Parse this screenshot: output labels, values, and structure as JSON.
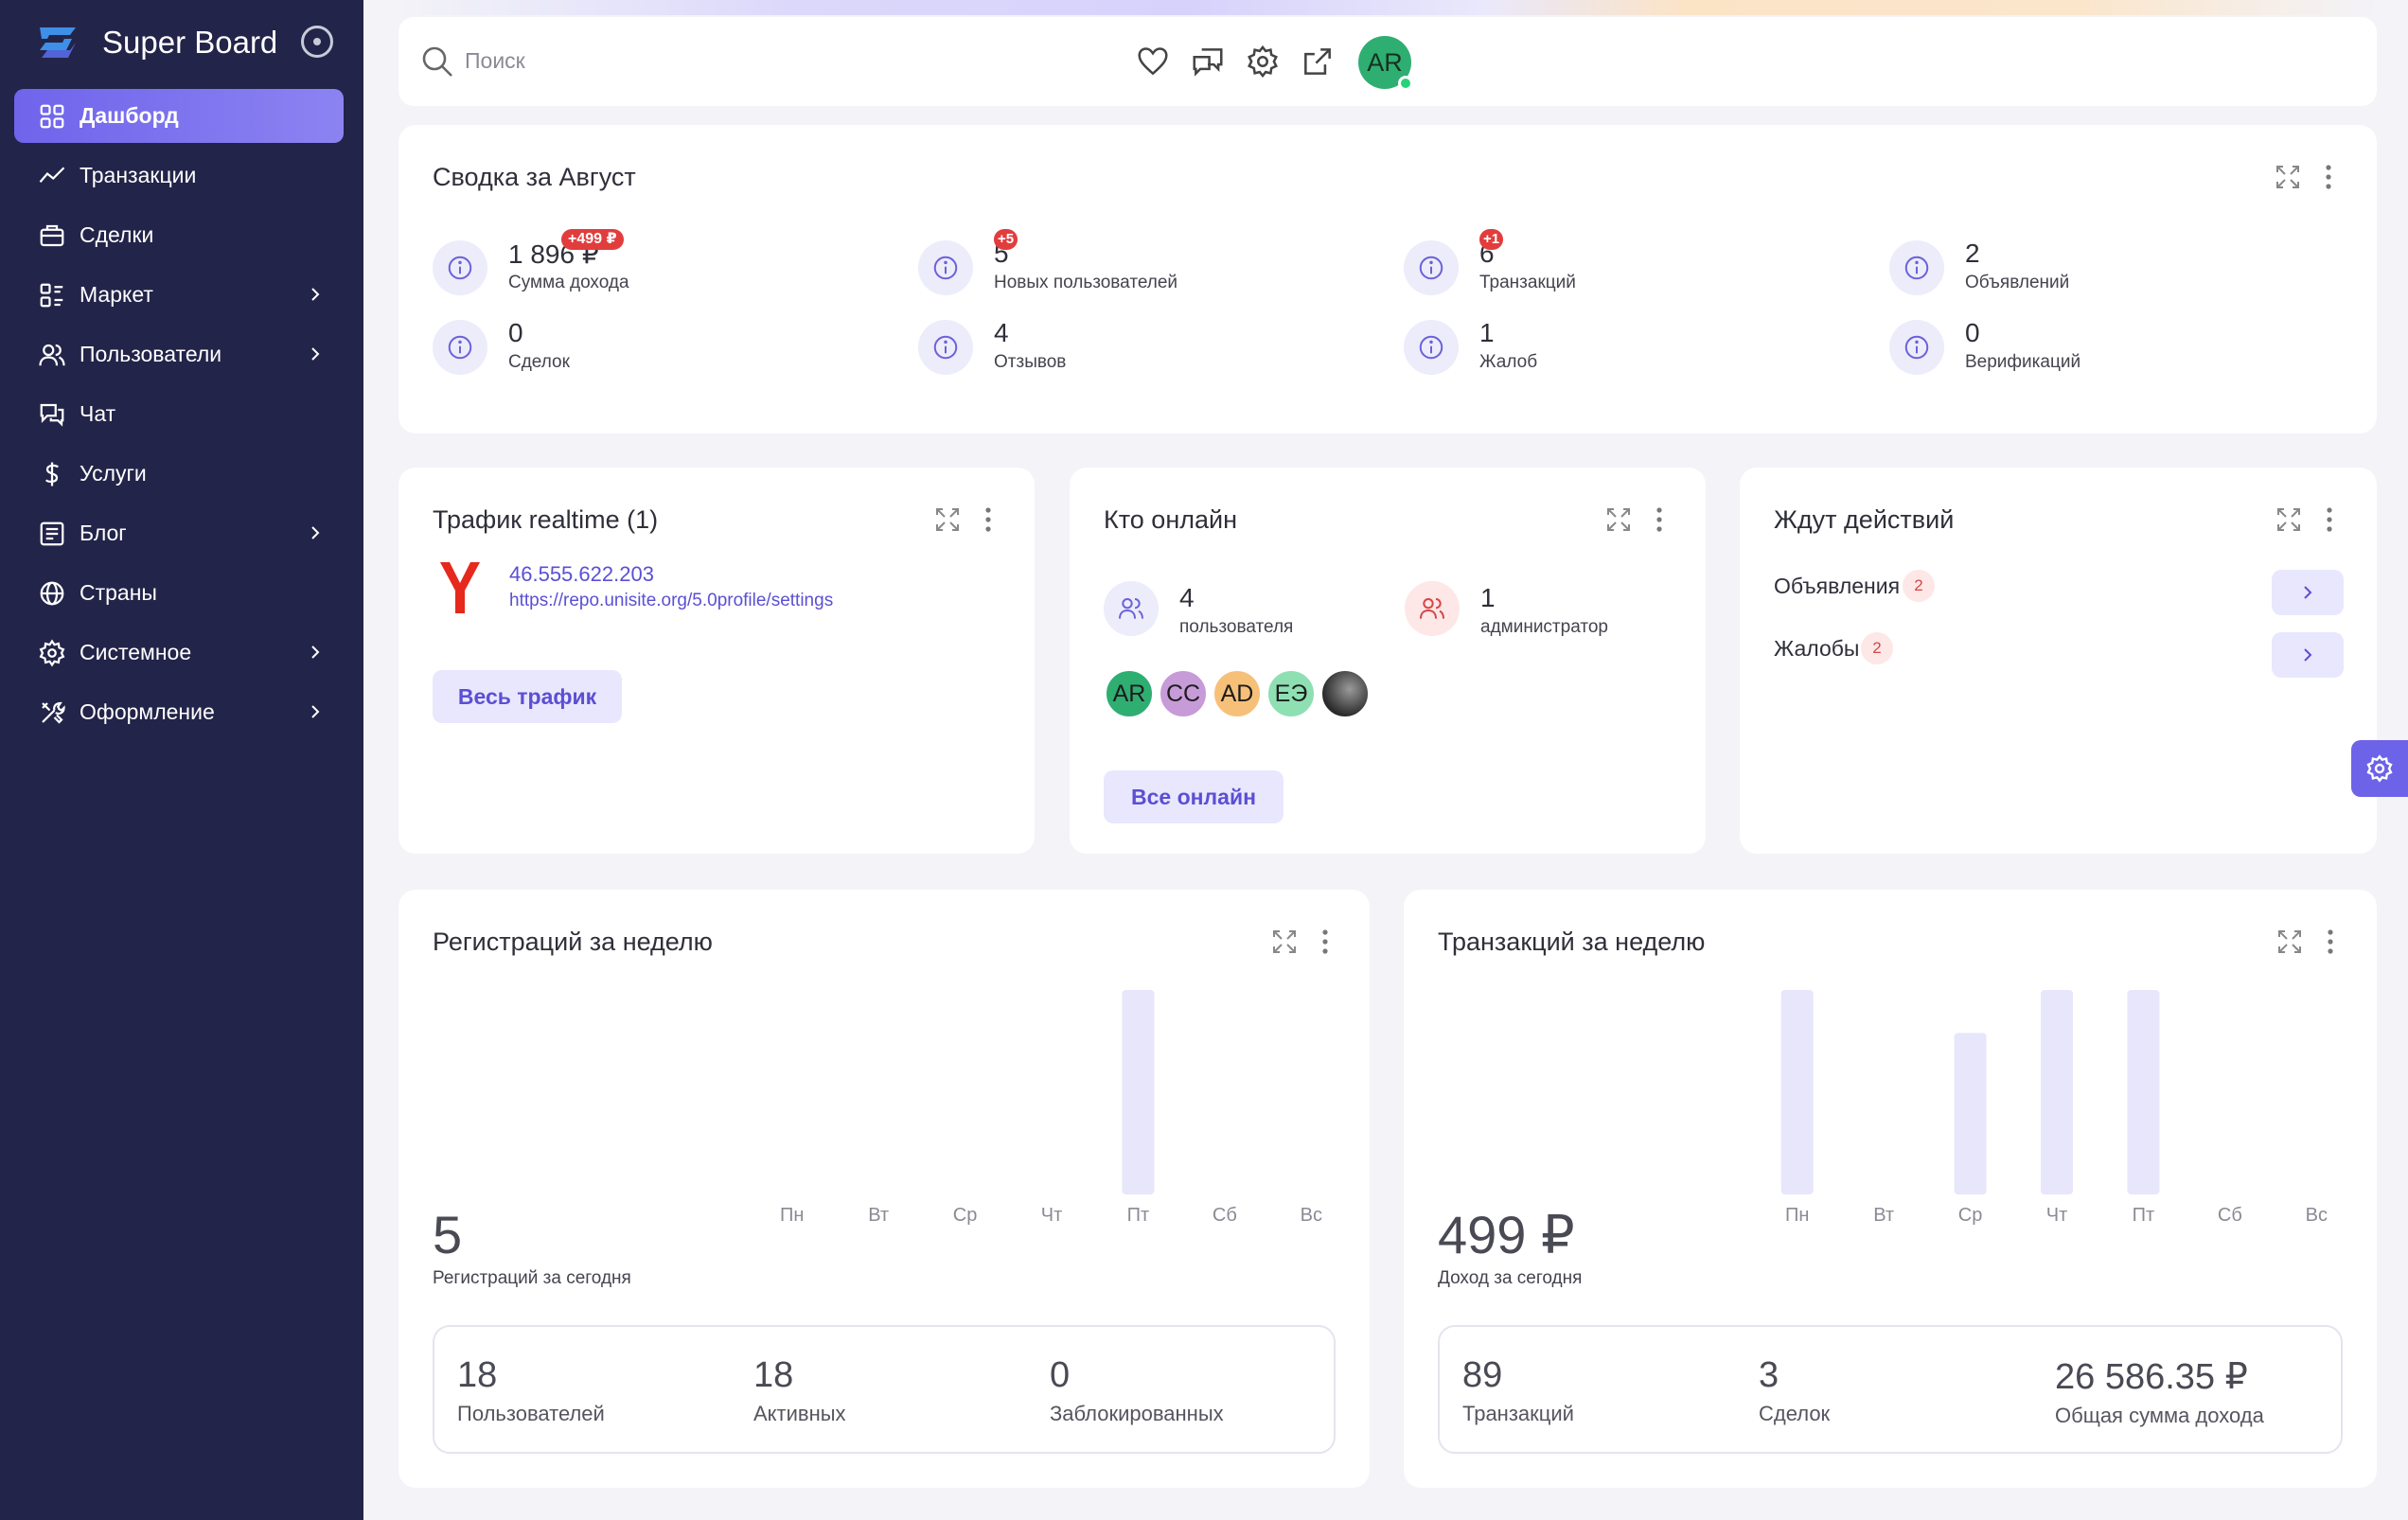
{
  "app": {
    "title": "Super Board"
  },
  "sidebar": {
    "items": [
      {
        "label": "Дашборд",
        "icon": "grid-icon",
        "active": true,
        "has_children": false
      },
      {
        "label": "Транзакции",
        "icon": "chart-line-icon",
        "has_children": false
      },
      {
        "label": "Сделки",
        "icon": "briefcase-icon",
        "has_children": false
      },
      {
        "label": "Маркет",
        "icon": "list-grid-icon",
        "has_children": true
      },
      {
        "label": "Пользователи",
        "icon": "users-icon",
        "has_children": true
      },
      {
        "label": "Чат",
        "icon": "chat-icon",
        "has_children": false
      },
      {
        "label": "Услуги",
        "icon": "dollar-icon",
        "has_children": false
      },
      {
        "label": "Блог",
        "icon": "document-icon",
        "has_children": true
      },
      {
        "label": "Страны",
        "icon": "globe-icon",
        "has_children": false
      },
      {
        "label": "Системное",
        "icon": "gear-icon",
        "has_children": true
      },
      {
        "label": "Оформление",
        "icon": "tools-icon",
        "has_children": true
      }
    ]
  },
  "header": {
    "search_placeholder": "Поиск",
    "user_initials": "AR"
  },
  "summary": {
    "title": "Сводка за Август",
    "stats": [
      {
        "value": "1 896 ₽",
        "label": "Сумма дохода",
        "badge": "+499 ₽"
      },
      {
        "value": "5",
        "label": "Новых пользователей",
        "badge": "+5"
      },
      {
        "value": "6",
        "label": "Транзакций",
        "badge": "+1"
      },
      {
        "value": "2",
        "label": "Объявлений",
        "badge": ""
      },
      {
        "value": "0",
        "label": "Сделок",
        "badge": ""
      },
      {
        "value": "4",
        "label": "Отзывов",
        "badge": ""
      },
      {
        "value": "1",
        "label": "Жалоб",
        "badge": ""
      },
      {
        "value": "0",
        "label": "Верификаций",
        "badge": ""
      }
    ]
  },
  "traffic": {
    "title": "Трафик realtime (1)",
    "ip": "46.555.622.203",
    "url": "https://repo.unisite.org/5.0profile/settings",
    "button": "Весь трафик"
  },
  "online": {
    "title": "Кто онлайн",
    "users_value": "4",
    "users_label": "пользователя",
    "admins_value": "1",
    "admins_label": "администратор",
    "avatars": [
      {
        "initials": "AR",
        "color": "#2fae72"
      },
      {
        "initials": "CC",
        "color": "#c79bd8"
      },
      {
        "initials": "AD",
        "color": "#f7c079"
      },
      {
        "initials": "ЕЭ",
        "color": "#8ee0b3"
      },
      {
        "initials": "",
        "color": "#3b3b3b"
      }
    ],
    "button": "Все онлайн"
  },
  "awaiting": {
    "title": "Ждут действий",
    "rows": [
      {
        "label": "Объявления",
        "count": "2"
      },
      {
        "label": "Жалобы",
        "count": "2"
      }
    ]
  },
  "registrations": {
    "title": "Регистраций за неделю",
    "today_value": "5",
    "today_label": "Регистраций за сегодня",
    "totals": [
      {
        "value": "18",
        "label": "Пользователей"
      },
      {
        "value": "18",
        "label": "Активных"
      },
      {
        "value": "0",
        "label": "Заблокированных"
      }
    ]
  },
  "transactions": {
    "title": "Транзакций за неделю",
    "today_value": "499 ₽",
    "today_label": "Доход за сегодня",
    "totals": [
      {
        "value": "89",
        "label": "Транзакций"
      },
      {
        "value": "3",
        "label": "Сделок"
      },
      {
        "value": "26 586.35 ₽",
        "label": "Общая сумма дохода"
      }
    ]
  },
  "chart_data": [
    {
      "type": "bar",
      "categories": [
        "Пн",
        "Вт",
        "Ср",
        "Чт",
        "Пт",
        "Сб",
        "Вс"
      ],
      "values": [
        0,
        0,
        0,
        0,
        1,
        0,
        0
      ],
      "color": "#e8e6fb"
    },
    {
      "type": "bar",
      "categories": [
        "Пн",
        "Вт",
        "Ср",
        "Чт",
        "Пт",
        "Сб",
        "Вс"
      ],
      "values": [
        1,
        0,
        0.79,
        1,
        1,
        0,
        0
      ],
      "color": "#e8e6fb"
    }
  ],
  "colors": {
    "accent": "#6c63e8",
    "sidebar": "#232449"
  }
}
